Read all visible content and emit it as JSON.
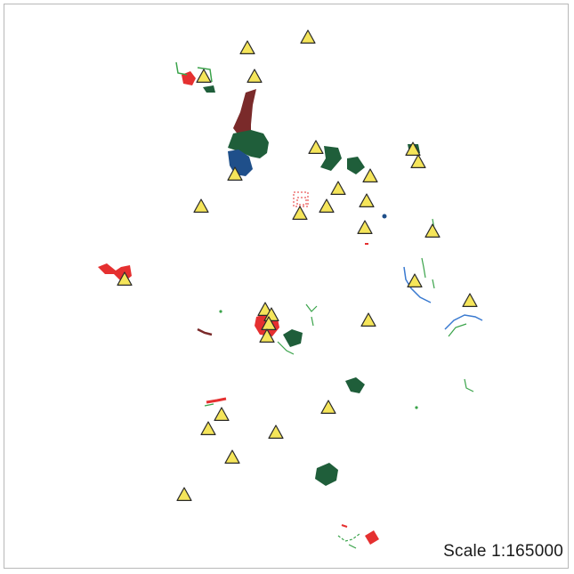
{
  "map": {
    "scale_text": "Scale 1:165000",
    "colors": {
      "marker_fill": "#f5e55a",
      "marker_stroke": "#2a2a2a",
      "forest_green": "#1f5e3a",
      "bright_green": "#3aa34a",
      "red": "#e53030",
      "maroon": "#7a2a2a",
      "blue": "#1f4f8a",
      "light_blue": "#3a7ad0"
    },
    "marker_symbol": "triangle-icon",
    "marker_count": 37
  }
}
